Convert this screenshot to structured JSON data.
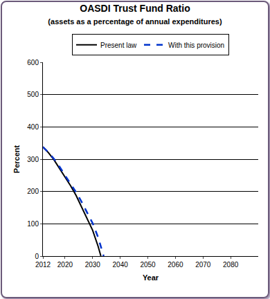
{
  "chart_data": {
    "type": "line",
    "title": "OASDI Trust Fund Ratio",
    "subtitle": "(assets as a percentage of annual expenditures)",
    "x_label": "Year",
    "y_label": "Percent",
    "x": [
      2012,
      2014,
      2016,
      2018,
      2020,
      2022,
      2024,
      2026,
      2028,
      2030,
      2032,
      2033,
      2034
    ],
    "series": [
      {
        "name": "Present law",
        "color": "#000000",
        "line_style": "solid",
        "values": [
          338,
          320,
          298,
          272,
          245,
          218,
          188,
          152,
          115,
          80,
          30,
          0,
          null
        ]
      },
      {
        "name": "With this provision",
        "color": "#0033cc",
        "line_style": "dash",
        "values": [
          338,
          321,
          301,
          277,
          250,
          225,
          198,
          168,
          135,
          102,
          58,
          28,
          0
        ]
      }
    ],
    "xlim": [
      2012,
      2090
    ],
    "xticks": [
      2012,
      2020,
      2030,
      2040,
      2050,
      2060,
      2070,
      2080
    ],
    "ylim": [
      0,
      600
    ],
    "yticks": [
      0,
      100,
      200,
      300,
      400,
      500,
      600
    ],
    "grid": true,
    "legend": "top"
  }
}
